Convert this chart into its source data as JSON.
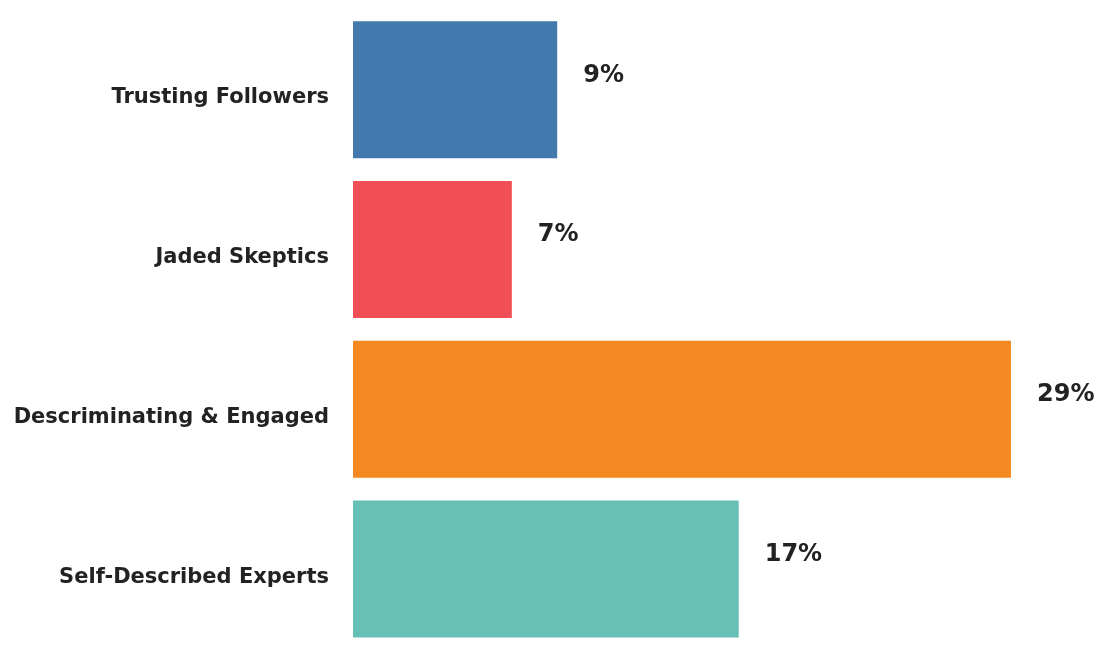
{
  "chart_data": {
    "type": "bar",
    "orientation": "horizontal",
    "categories": [
      "Trusting Followers",
      "Jaded Skeptics",
      "Descriminating &  Engaged",
      "Self-Described Experts"
    ],
    "values": [
      9,
      7,
      29,
      17
    ],
    "colors": [
      "#4479ad",
      "#ef4f55",
      "#f48922",
      "#66c0b6"
    ],
    "data_labels": true,
    "value_labels": [
      "9%",
      "7%",
      "29%",
      "17%"
    ]
  }
}
